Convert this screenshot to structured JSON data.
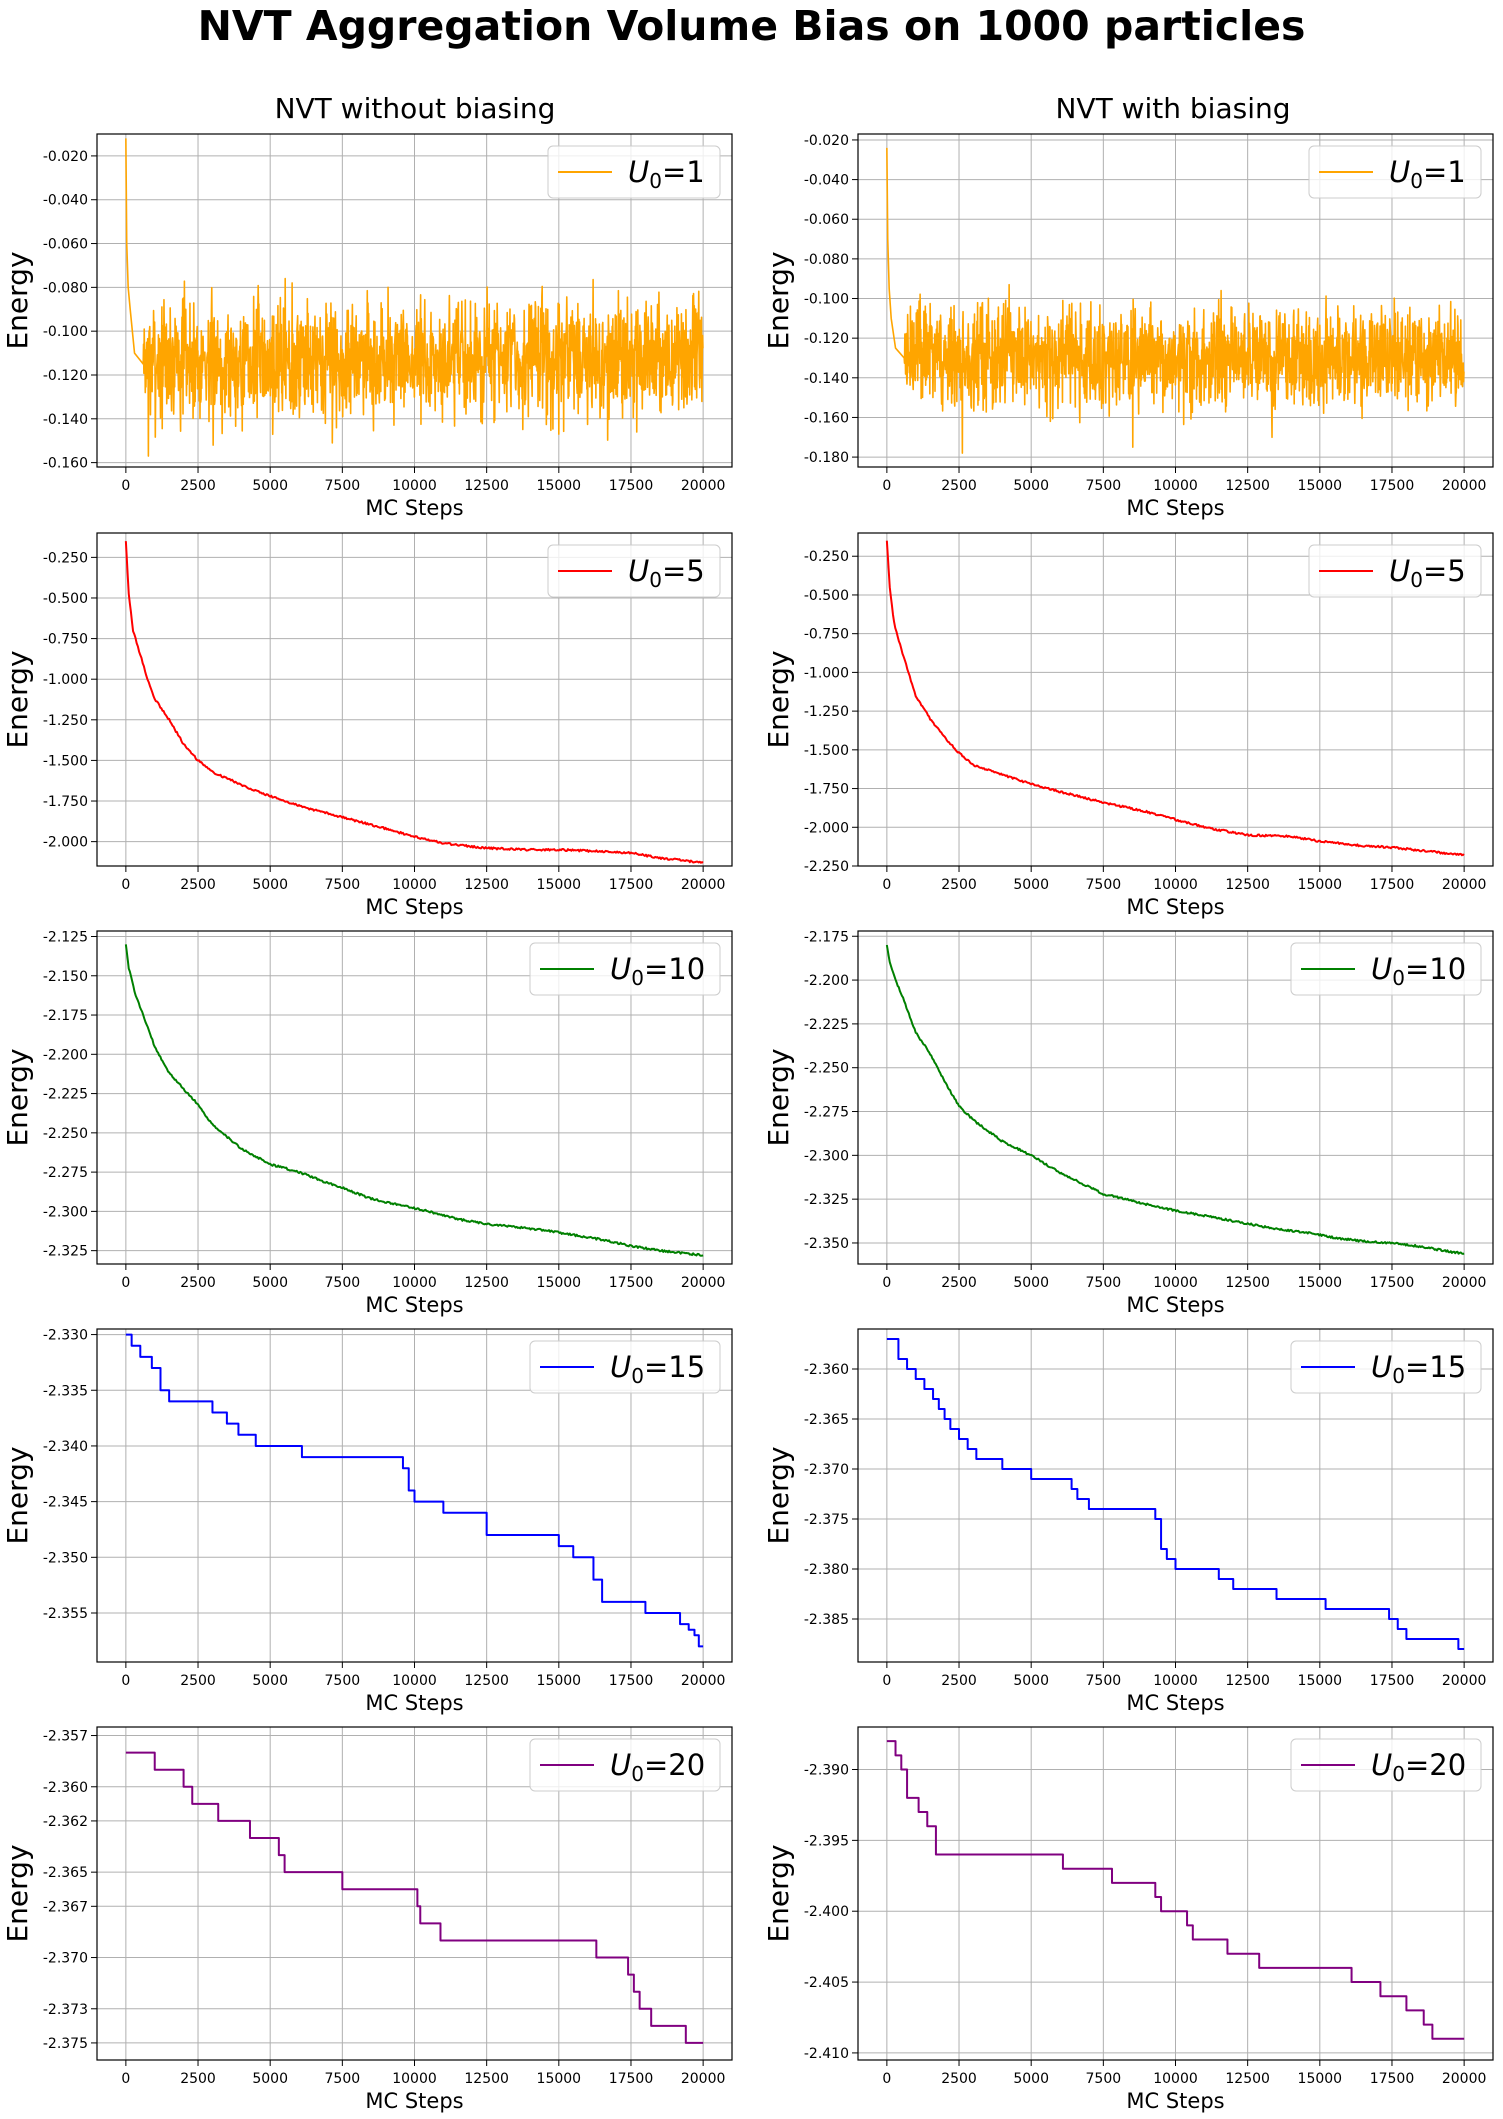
{
  "figure": {
    "title": "NVT Aggregation Volume Bias on 1000 particles",
    "columns": [
      "NVT without biasing",
      "NVT with biasing"
    ]
  },
  "chart_data": [
    {
      "type": "line",
      "subplot": "row1-left",
      "column": "NVT without biasing",
      "xlabel": "MC Steps",
      "ylabel": "Energy",
      "legend": "U0=1",
      "legend_placement": "top-right",
      "color": "#ffa500",
      "grid": true,
      "pattern": "noise",
      "xlim": [
        -1000,
        21000
      ],
      "ylim": [
        -0.162,
        -0.01
      ],
      "xticks": [
        0,
        2500,
        5000,
        7500,
        10000,
        12500,
        15000,
        17500,
        20000
      ],
      "yticks": [
        -0.16,
        -0.14,
        -0.12,
        -0.1,
        -0.08,
        -0.06,
        -0.04,
        -0.02
      ],
      "ytick_labels": [
        "-0.160",
        "-0.140",
        "-0.120",
        "-0.100",
        "-0.080",
        "-0.060",
        "-0.040",
        "-0.020"
      ],
      "series": [
        {
          "x": [
            0,
            30,
            80,
            150,
            300,
            600
          ],
          "y": [
            -0.012,
            -0.06,
            -0.08,
            -0.09,
            -0.11,
            -0.115
          ]
        }
      ],
      "steady_mean": -0.113,
      "steady_low": -0.138,
      "steady_high": -0.082,
      "spikes_low": [
        -0.157,
        -0.152,
        -0.151,
        -0.146
      ],
      "spikes_high": [
        -0.076,
        -0.078
      ]
    },
    {
      "type": "line",
      "subplot": "row1-right",
      "column": "NVT with biasing",
      "xlabel": "MC Steps",
      "ylabel": "Energy",
      "legend": "U0=1",
      "legend_placement": "top-right",
      "color": "#ffa500",
      "grid": true,
      "pattern": "noise",
      "xlim": [
        -1000,
        21000
      ],
      "ylim": [
        -0.185,
        -0.017
      ],
      "xticks": [
        0,
        2500,
        5000,
        7500,
        10000,
        12500,
        15000,
        17500,
        20000
      ],
      "yticks": [
        -0.18,
        -0.16,
        -0.14,
        -0.12,
        -0.1,
        -0.08,
        -0.06,
        -0.04,
        -0.02
      ],
      "ytick_labels": [
        "-0.180",
        "-0.160",
        "-0.140",
        "-0.120",
        "-0.100",
        "-0.080",
        "-0.060",
        "-0.040",
        "-0.020"
      ],
      "series": [
        {
          "x": [
            0,
            30,
            80,
            150,
            300,
            600
          ],
          "y": [
            -0.024,
            -0.07,
            -0.095,
            -0.11,
            -0.125,
            -0.13
          ]
        }
      ],
      "steady_mean": -0.13,
      "steady_low": -0.155,
      "steady_high": -0.103,
      "spikes_low": [
        -0.178,
        -0.175,
        -0.17
      ],
      "spikes_high": [
        -0.093,
        -0.096
      ]
    },
    {
      "type": "line",
      "subplot": "row2-left",
      "column": "NVT without biasing",
      "xlabel": "MC Steps",
      "ylabel": "Energy",
      "legend": "U0=5",
      "legend_placement": "top-right",
      "color": "#ff0000",
      "grid": true,
      "pattern": "smooth",
      "xlim": [
        -1000,
        21000
      ],
      "ylim": [
        -2.15,
        -0.1
      ],
      "xticks": [
        0,
        2500,
        5000,
        7500,
        10000,
        12500,
        15000,
        17500,
        20000
      ],
      "yticks": [
        -2.0,
        -1.75,
        -1.5,
        -1.25,
        -1.0,
        -0.75,
        -0.5,
        -0.25
      ],
      "ytick_labels": [
        "-2.000",
        "-1.750",
        "-1.500",
        "-1.250",
        "-1.000",
        "-0.750",
        "-0.500",
        "-0.250"
      ],
      "series": [
        {
          "x": [
            0,
            100,
            250,
            500,
            750,
            1000,
            1500,
            2000,
            2500,
            3000,
            4000,
            5000,
            6000,
            7500,
            9000,
            10000,
            11000,
            12500,
            14000,
            15000,
            16500,
            17500,
            18500,
            19500,
            20000
          ],
          "y": [
            -0.15,
            -0.48,
            -0.7,
            -0.85,
            -1.0,
            -1.12,
            -1.25,
            -1.4,
            -1.5,
            -1.57,
            -1.65,
            -1.72,
            -1.78,
            -1.85,
            -1.92,
            -1.97,
            -2.01,
            -2.04,
            -2.05,
            -2.05,
            -2.06,
            -2.07,
            -2.1,
            -2.12,
            -2.13
          ]
        }
      ]
    },
    {
      "type": "line",
      "subplot": "row2-right",
      "column": "NVT with biasing",
      "xlabel": "MC Steps",
      "ylabel": "Energy",
      "legend": "U0=5",
      "legend_placement": "top-right",
      "color": "#ff0000",
      "grid": true,
      "pattern": "smooth",
      "xlim": [
        -1000,
        21000
      ],
      "ylim": [
        -2.25,
        -0.1
      ],
      "xticks": [
        0,
        2500,
        5000,
        7500,
        10000,
        12500,
        15000,
        17500,
        20000
      ],
      "yticks": [
        -2.25,
        -2.0,
        -1.75,
        -1.5,
        -1.25,
        -1.0,
        -0.75,
        -0.5,
        -0.25
      ],
      "ytick_labels": [
        "-2.250",
        "-2.000",
        "-1.750",
        "-1.500",
        "-1.250",
        "-1.000",
        "-0.750",
        "-0.500",
        "-0.250"
      ],
      "series": [
        {
          "x": [
            0,
            100,
            250,
            500,
            750,
            1000,
            1500,
            2000,
            2500,
            3000,
            4000,
            5000,
            6000,
            7500,
            9000,
            10000,
            11000,
            12500,
            14000,
            15000,
            16500,
            17500,
            18500,
            19500,
            20000
          ],
          "y": [
            -0.15,
            -0.45,
            -0.68,
            -0.85,
            -1.0,
            -1.15,
            -1.3,
            -1.42,
            -1.52,
            -1.6,
            -1.66,
            -1.72,
            -1.77,
            -1.84,
            -1.9,
            -1.95,
            -2.0,
            -2.05,
            -2.06,
            -2.09,
            -2.12,
            -2.13,
            -2.15,
            -2.17,
            -2.18
          ]
        }
      ]
    },
    {
      "type": "line",
      "subplot": "row3-left",
      "column": "NVT without biasing",
      "xlabel": "MC Steps",
      "ylabel": "Energy",
      "legend": "U0=10",
      "legend_placement": "top-right",
      "color": "#008000",
      "grid": true,
      "pattern": "smooth",
      "xlim": [
        -1000,
        21000
      ],
      "ylim": [
        -2.3335,
        -2.1215
      ],
      "xticks": [
        0,
        2500,
        5000,
        7500,
        10000,
        12500,
        15000,
        17500,
        20000
      ],
      "yticks": [
        -2.325,
        -2.3,
        -2.275,
        -2.25,
        -2.225,
        -2.2,
        -2.175,
        -2.15,
        -2.125
      ],
      "ytick_labels": [
        "-2.325",
        "-2.300",
        "-2.275",
        "-2.250",
        "-2.225",
        "-2.200",
        "-2.175",
        "-2.150",
        "-2.125"
      ],
      "series": [
        {
          "x": [
            0,
            100,
            300,
            600,
            1000,
            1500,
            2000,
            2500,
            3000,
            4000,
            5000,
            6000,
            7000,
            7500,
            8500,
            9500,
            10500,
            11500,
            12500,
            13500,
            14500,
            15500,
            16500,
            17500,
            18500,
            19500,
            20000
          ],
          "y": [
            -2.13,
            -2.145,
            -2.16,
            -2.175,
            -2.195,
            -2.212,
            -2.222,
            -2.232,
            -2.245,
            -2.26,
            -2.27,
            -2.275,
            -2.282,
            -2.285,
            -2.292,
            -2.296,
            -2.3,
            -2.305,
            -2.308,
            -2.31,
            -2.312,
            -2.315,
            -2.318,
            -2.322,
            -2.325,
            -2.327,
            -2.328
          ]
        }
      ]
    },
    {
      "type": "line",
      "subplot": "row3-right",
      "column": "NVT with biasing",
      "xlabel": "MC Steps",
      "ylabel": "Energy",
      "legend": "U0=10",
      "legend_placement": "top-right",
      "color": "#008000",
      "grid": true,
      "pattern": "smooth",
      "xlim": [
        -1000,
        21000
      ],
      "ylim": [
        -2.362,
        -2.172
      ],
      "xticks": [
        0,
        2500,
        5000,
        7500,
        10000,
        12500,
        15000,
        17500,
        20000
      ],
      "yticks": [
        -2.35,
        -2.325,
        -2.3,
        -2.275,
        -2.25,
        -2.225,
        -2.2,
        -2.175
      ],
      "ytick_labels": [
        "-2.350",
        "-2.325",
        "-2.300",
        "-2.275",
        "-2.250",
        "-2.225",
        "-2.200",
        "-2.175"
      ],
      "series": [
        {
          "x": [
            0,
            100,
            300,
            600,
            1000,
            1500,
            2000,
            2500,
            3000,
            4000,
            5000,
            6000,
            7000,
            7500,
            8500,
            9500,
            10500,
            11500,
            12500,
            13500,
            14500,
            15500,
            16500,
            17500,
            18500,
            19500,
            20000
          ],
          "y": [
            -2.18,
            -2.19,
            -2.2,
            -2.212,
            -2.23,
            -2.242,
            -2.258,
            -2.272,
            -2.28,
            -2.292,
            -2.3,
            -2.31,
            -2.318,
            -2.322,
            -2.326,
            -2.33,
            -2.333,
            -2.336,
            -2.339,
            -2.342,
            -2.344,
            -2.347,
            -2.349,
            -2.35,
            -2.352,
            -2.355,
            -2.356
          ]
        }
      ]
    },
    {
      "type": "line",
      "subplot": "row4-left",
      "column": "NVT without biasing",
      "xlabel": "MC Steps",
      "ylabel": "Energy",
      "legend": "U0=15",
      "legend_placement": "top-right",
      "color": "#0000ff",
      "grid": true,
      "pattern": "step",
      "xlim": [
        -1000,
        21000
      ],
      "ylim": [
        -2.3594,
        -2.3295
      ],
      "xticks": [
        0,
        2500,
        5000,
        7500,
        10000,
        12500,
        15000,
        17500,
        20000
      ],
      "yticks": [
        -2.355,
        -2.35,
        -2.345,
        -2.34,
        -2.335,
        -2.33
      ],
      "ytick_labels": [
        "-2.355",
        "-2.350",
        "-2.345",
        "-2.340",
        "-2.335",
        "-2.330"
      ],
      "series": [
        {
          "x": [
            0,
            200,
            500,
            900,
            1200,
            1500,
            3000,
            3500,
            3900,
            4500,
            6100,
            9600,
            9800,
            10000,
            11000,
            12500,
            15000,
            15500,
            16200,
            16500,
            18000,
            19200,
            19500,
            19700,
            19850,
            20000
          ],
          "y": [
            -2.33,
            -2.331,
            -2.332,
            -2.333,
            -2.335,
            -2.336,
            -2.337,
            -2.338,
            -2.339,
            -2.34,
            -2.341,
            -2.342,
            -2.344,
            -2.345,
            -2.346,
            -2.348,
            -2.349,
            -2.35,
            -2.352,
            -2.354,
            -2.355,
            -2.356,
            -2.3565,
            -2.357,
            -2.358,
            -2.358
          ]
        }
      ]
    },
    {
      "type": "line",
      "subplot": "row4-right",
      "column": "NVT with biasing",
      "xlabel": "MC Steps",
      "ylabel": "Energy",
      "legend": "U0=15",
      "legend_placement": "top-right",
      "color": "#0000ff",
      "grid": true,
      "pattern": "step",
      "xlim": [
        -1000,
        21000
      ],
      "ylim": [
        -2.3893,
        -2.356
      ],
      "xticks": [
        0,
        2500,
        5000,
        7500,
        10000,
        12500,
        15000,
        17500,
        20000
      ],
      "yticks": [
        -2.385,
        -2.38,
        -2.375,
        -2.37,
        -2.365,
        -2.36
      ],
      "ytick_labels": [
        "-2.385",
        "-2.380",
        "-2.375",
        "-2.370",
        "-2.365",
        "-2.360"
      ],
      "series": [
        {
          "x": [
            0,
            400,
            700,
            1000,
            1300,
            1600,
            1800,
            2000,
            2200,
            2500,
            2800,
            3100,
            3500,
            4000,
            5000,
            6400,
            6600,
            7000,
            8000,
            9300,
            9500,
            9700,
            10000,
            11000,
            11500,
            12000,
            13500,
            15200,
            17400,
            17700,
            18000,
            19800,
            20000
          ],
          "y": [
            -2.357,
            -2.359,
            -2.36,
            -2.361,
            -2.362,
            -2.363,
            -2.364,
            -2.365,
            -2.366,
            -2.367,
            -2.368,
            -2.369,
            -2.369,
            -2.37,
            -2.371,
            -2.372,
            -2.373,
            -2.374,
            -2.374,
            -2.375,
            -2.378,
            -2.379,
            -2.38,
            -2.38,
            -2.381,
            -2.382,
            -2.383,
            -2.384,
            -2.385,
            -2.386,
            -2.387,
            -2.388,
            -2.388
          ]
        }
      ]
    },
    {
      "type": "line",
      "subplot": "row5-left",
      "column": "NVT without biasing",
      "xlabel": "MC Steps",
      "ylabel": "Energy",
      "legend": "U0=20",
      "legend_placement": "top-right",
      "color": "#800080",
      "grid": true,
      "pattern": "step",
      "xlim": [
        -1000,
        21000
      ],
      "ylim": [
        -2.376,
        -2.3565
      ],
      "xticks": [
        0,
        2500,
        5000,
        7500,
        10000,
        12500,
        15000,
        17500,
        20000
      ],
      "yticks": [
        -2.375,
        -2.373,
        -2.37,
        -2.367,
        -2.365,
        -2.362,
        -2.36,
        -2.357
      ],
      "ytick_labels": [
        "-2.375",
        "-2.373",
        "-2.370",
        "-2.367",
        "-2.365",
        "-2.362",
        "-2.360",
        "-2.357"
      ],
      "series": [
        {
          "x": [
            0,
            1000,
            2000,
            2300,
            3200,
            4300,
            5300,
            5500,
            7500,
            10100,
            10200,
            10900,
            16300,
            17400,
            17600,
            17800,
            18200,
            19400,
            20000
          ],
          "y": [
            -2.358,
            -2.359,
            -2.36,
            -2.361,
            -2.362,
            -2.363,
            -2.364,
            -2.365,
            -2.366,
            -2.367,
            -2.368,
            -2.369,
            -2.37,
            -2.371,
            -2.372,
            -2.373,
            -2.374,
            -2.375,
            -2.375
          ]
        }
      ]
    },
    {
      "type": "line",
      "subplot": "row5-right",
      "column": "NVT with biasing",
      "xlabel": "MC Steps",
      "ylabel": "Energy",
      "legend": "U0=20",
      "legend_placement": "top-right",
      "color": "#800080",
      "grid": true,
      "pattern": "step",
      "xlim": [
        -1000,
        21000
      ],
      "ylim": [
        -2.4105,
        -2.387
      ],
      "xticks": [
        0,
        2500,
        5000,
        7500,
        10000,
        12500,
        15000,
        17500,
        20000
      ],
      "yticks": [
        -2.41,
        -2.405,
        -2.4,
        -2.395,
        -2.39
      ],
      "ytick_labels": [
        "-2.410",
        "-2.405",
        "-2.400",
        "-2.395",
        "-2.390"
      ],
      "series": [
        {
          "x": [
            0,
            300,
            500,
            700,
            1100,
            1400,
            1700,
            6100,
            7800,
            9300,
            9500,
            10400,
            10600,
            11800,
            12900,
            16100,
            17100,
            18000,
            18600,
            18900,
            19200,
            20000
          ],
          "y": [
            -2.388,
            -2.389,
            -2.39,
            -2.392,
            -2.393,
            -2.394,
            -2.396,
            -2.397,
            -2.398,
            -2.399,
            -2.4,
            -2.401,
            -2.402,
            -2.403,
            -2.404,
            -2.405,
            -2.406,
            -2.407,
            -2.408,
            -2.409,
            -2.409,
            -2.409
          ]
        }
      ]
    }
  ]
}
